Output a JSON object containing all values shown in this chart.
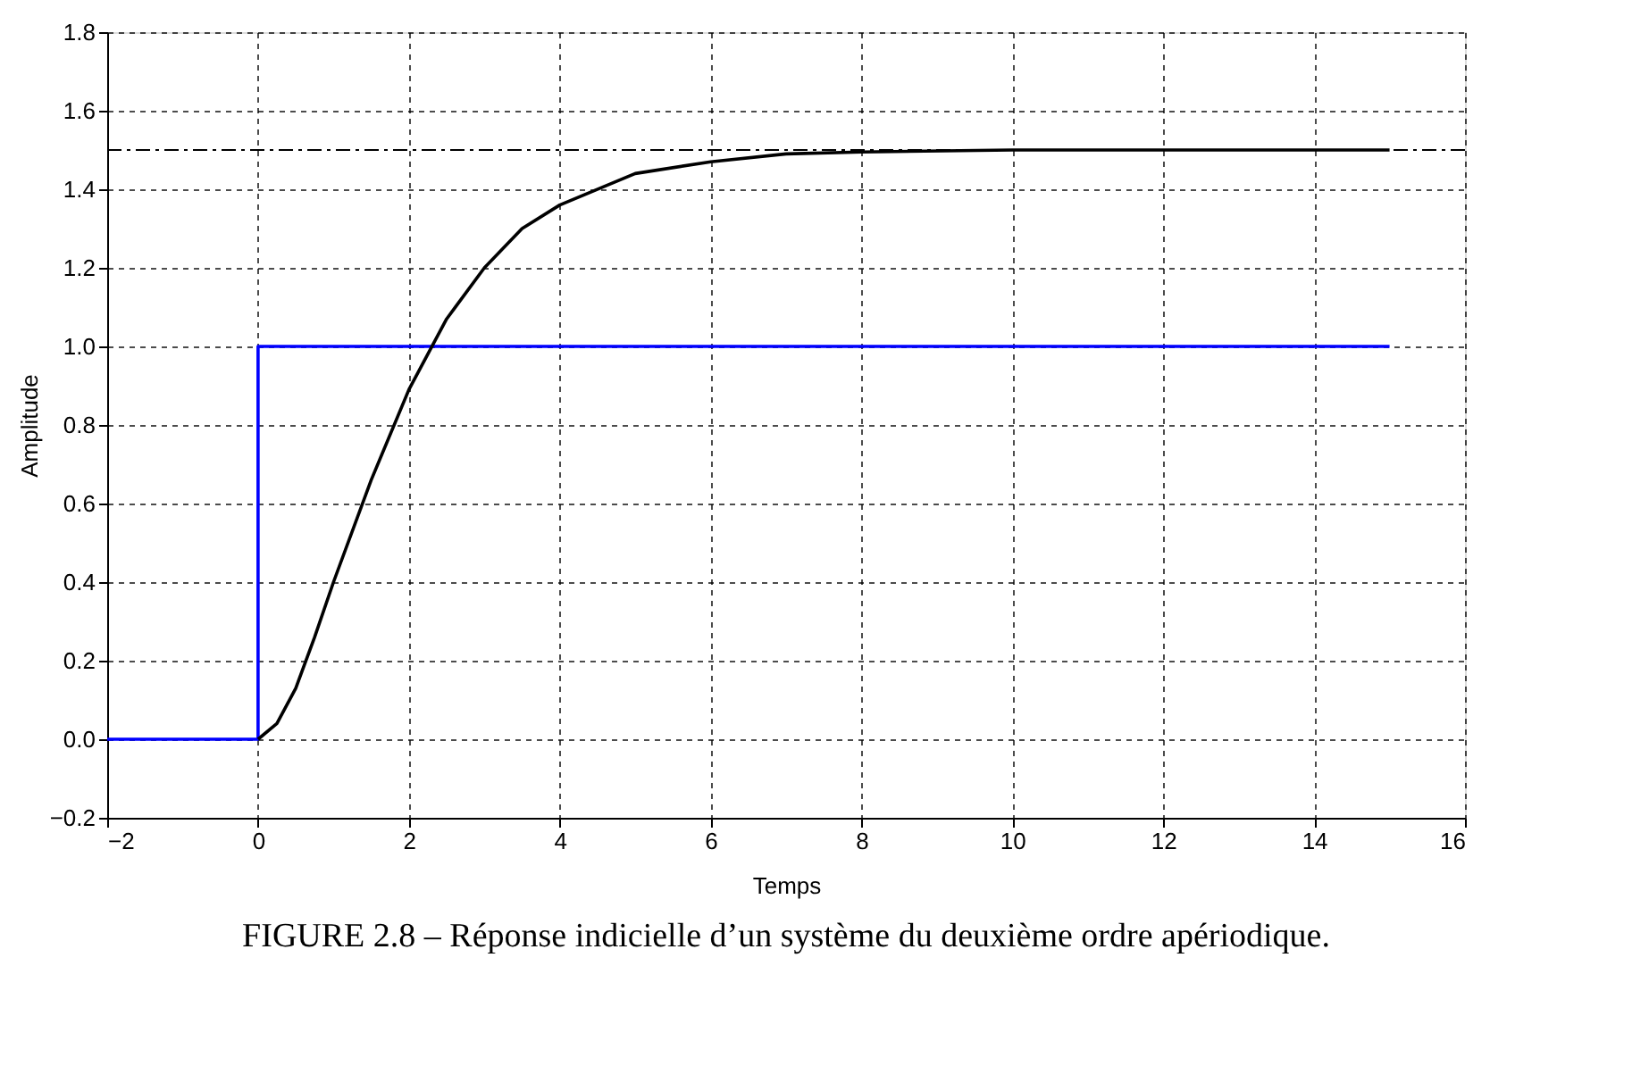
{
  "chart_data": {
    "type": "line",
    "xlabel": "Temps",
    "ylabel": "Amplitude",
    "annotations": [
      "FIGURE 2.8 – Réponse indicielle d’un système du deuxième ordre apériodique."
    ],
    "series": [
      {
        "color": "#0000ff",
        "x": [
          -2,
          0,
          0,
          15
        ],
        "values": [
          0,
          0,
          1,
          1
        ]
      },
      {
        "color": "#000000",
        "x": [
          0,
          0.25,
          0.5,
          0.75,
          1,
          1.5,
          2,
          2.5,
          3,
          3.5,
          4,
          5,
          6,
          7,
          8,
          10,
          15
        ],
        "values": [
          0,
          0.04,
          0.13,
          0.26,
          0.4,
          0.66,
          0.89,
          1.07,
          1.2,
          1.3,
          1.36,
          1.44,
          1.47,
          1.49,
          1.495,
          1.5,
          1.5
        ]
      }
    ],
    "ref_lines": [
      {
        "axis": "y",
        "value": 1.5,
        "color": "#000000",
        "line_style": "dashed"
      }
    ],
    "xlim": [
      -2,
      16
    ],
    "xticks": [
      {
        "value": -2,
        "label": "−2"
      },
      0,
      2,
      4,
      6,
      8,
      10,
      12,
      14,
      16
    ],
    "ylim": [
      -0.2,
      1.8
    ],
    "yticks": [
      {
        "value": -0.2,
        "label": "−0.2"
      },
      {
        "value": 0,
        "label": "0.0"
      },
      0.2,
      0.4,
      0.6,
      0.8,
      {
        "value": 1,
        "label": "1.0"
      },
      1.2,
      1.4,
      1.6,
      1.8
    ],
    "grid": true,
    "line_style": "solid",
    "marker": "none"
  }
}
